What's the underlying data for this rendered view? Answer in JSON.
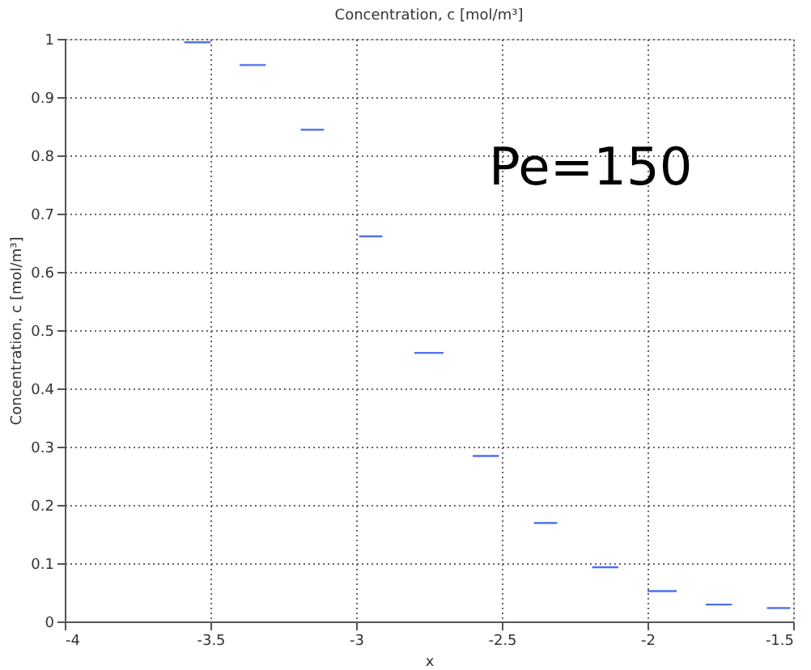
{
  "chart_data": {
    "type": "line",
    "title": "Concentration, c [mol/m³]",
    "xlabel": "x",
    "ylabel": "Concentration, c [mol/m³]",
    "annotations": [
      "Pe=150"
    ],
    "series": [
      {
        "color": "#5070f0",
        "x": [
          -3.59,
          -3.5
        ],
        "values": [
          0.994,
          0.994
        ]
      },
      {
        "color": "#5070f0",
        "x": [
          -3.4,
          -3.31
        ],
        "values": [
          0.955,
          0.955
        ]
      },
      {
        "color": "#5070f0",
        "x": [
          -3.19,
          -3.11
        ],
        "values": [
          0.844,
          0.844
        ]
      },
      {
        "color": "#5070f0",
        "x": [
          -2.99,
          -2.91
        ],
        "values": [
          0.661,
          0.661
        ]
      },
      {
        "color": "#5070f0",
        "x": [
          -2.8,
          -2.7
        ],
        "values": [
          0.461,
          0.461
        ]
      },
      {
        "color": "#5070f0",
        "x": [
          -2.6,
          -2.51
        ],
        "values": [
          0.284,
          0.284
        ]
      },
      {
        "color": "#5070f0",
        "x": [
          -2.39,
          -2.31
        ],
        "values": [
          0.169,
          0.169
        ]
      },
      {
        "color": "#5070f0",
        "x": [
          -2.19,
          -2.1
        ],
        "values": [
          0.093,
          0.093
        ]
      },
      {
        "color": "#5070f0",
        "x": [
          -2.0,
          -1.9
        ],
        "values": [
          0.052,
          0.052
        ]
      },
      {
        "color": "#5070f0",
        "x": [
          -1.8,
          -1.71
        ],
        "values": [
          0.029,
          0.029
        ]
      },
      {
        "color": "#5070f0",
        "x": [
          -1.59,
          -1.51
        ],
        "values": [
          0.023,
          0.023
        ]
      }
    ],
    "xlim": [
      -4,
      -1.5
    ],
    "xticks": [
      -4,
      -3.5,
      -3,
      -2.5,
      -2,
      -1.5
    ],
    "ylim": [
      0,
      1
    ],
    "yticks": [
      0,
      0.1,
      0.2,
      0.3,
      0.4,
      0.5,
      0.6,
      0.7,
      0.8,
      0.9,
      1
    ],
    "grid": true,
    "legend": false,
    "marker": "none",
    "line_style": "solid"
  }
}
